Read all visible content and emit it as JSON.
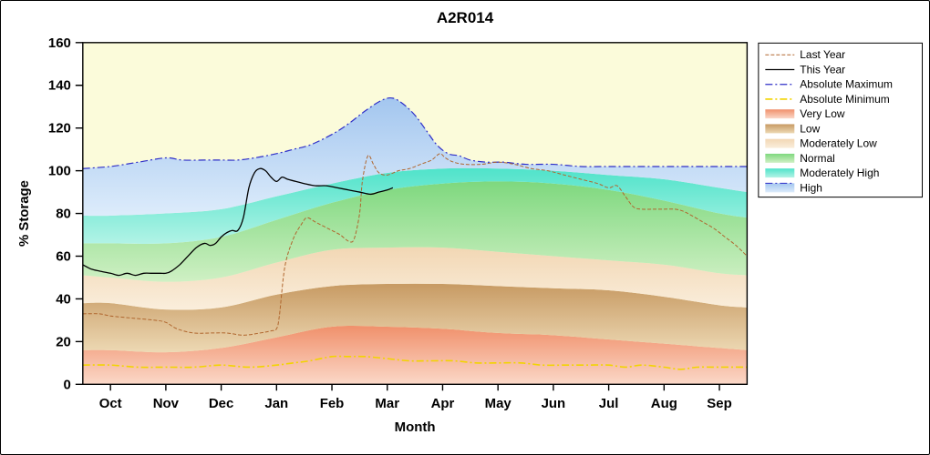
{
  "chart_data": {
    "type": "area",
    "title": "A2R014",
    "xlabel": "Month",
    "ylabel": "% Storage",
    "months": [
      "Oct",
      "Nov",
      "Dec",
      "Jan",
      "Feb",
      "Mar",
      "Apr",
      "May",
      "Jun",
      "Jul",
      "Aug",
      "Sep"
    ],
    "xlim": [
      -0.5,
      11.5
    ],
    "ylim": [
      0,
      160
    ],
    "yticks": [
      0,
      20,
      40,
      60,
      80,
      100,
      120,
      140,
      160
    ],
    "plot_bg": "#FBFBDA",
    "grid": "off",
    "bands": {
      "x": [
        -0.5,
        0,
        1,
        2,
        3,
        4,
        5,
        6,
        7,
        8,
        9,
        10,
        11,
        11.5
      ],
      "layers": [
        {
          "name": "Very Low",
          "color_top": "#F0906B",
          "color_bottom": "#FBD8C8",
          "top": [
            16,
            16,
            15,
            17,
            22,
            27,
            27,
            26,
            24,
            23,
            21,
            19,
            17,
            16
          ]
        },
        {
          "name": "Low",
          "color_top": "#C79A63",
          "color_bottom": "#EDD9B4",
          "top": [
            38,
            38,
            35,
            36,
            42,
            46,
            47,
            47,
            46,
            45,
            44,
            41,
            37,
            36
          ]
        },
        {
          "name": "Moderately Low",
          "color_top": "#F2D7B4",
          "color_bottom": "#FAEEDC",
          "top": [
            51,
            50,
            48,
            50,
            57,
            63,
            64,
            64,
            62,
            60,
            58,
            56,
            52,
            51
          ]
        },
        {
          "name": "Normal",
          "color_top": "#7ED87E",
          "color_bottom": "#CFF0C4",
          "top": [
            66,
            66,
            66,
            69,
            77,
            85,
            91,
            94,
            95,
            94,
            91,
            86,
            80,
            78
          ]
        },
        {
          "name": "Moderately High",
          "color_top": "#4FE3CA",
          "color_bottom": "#B2F3E6",
          "top": [
            79,
            79,
            80,
            82,
            88,
            94,
            99,
            101,
            101,
            100,
            98,
            96,
            92,
            90
          ]
        },
        {
          "name": "High",
          "color_top": "#A3C6EF",
          "color_bottom": "#DDECFB",
          "top_ref": "absolute_maximum"
        }
      ]
    },
    "series": {
      "last_year": {
        "label": "Last Year",
        "color": "#B0662E",
        "dash": "4 2",
        "width": 1,
        "points": [
          [
            -0.5,
            33
          ],
          [
            -0.2,
            33
          ],
          [
            0,
            32
          ],
          [
            0.4,
            31
          ],
          [
            0.8,
            30
          ],
          [
            1,
            29
          ],
          [
            1.2,
            26
          ],
          [
            1.5,
            24
          ],
          [
            1.8,
            24
          ],
          [
            2.1,
            24
          ],
          [
            2.4,
            23
          ],
          [
            2.7,
            24
          ],
          [
            2.9,
            25
          ],
          [
            3,
            26
          ],
          [
            3.05,
            32
          ],
          [
            3.15,
            55
          ],
          [
            3.3,
            68
          ],
          [
            3.45,
            75
          ],
          [
            3.55,
            78
          ],
          [
            3.7,
            76
          ],
          [
            3.85,
            74
          ],
          [
            4,
            72
          ],
          [
            4.15,
            70
          ],
          [
            4.3,
            67
          ],
          [
            4.4,
            68
          ],
          [
            4.5,
            80
          ],
          [
            4.55,
            95
          ],
          [
            4.65,
            107
          ],
          [
            4.75,
            103
          ],
          [
            4.85,
            99
          ],
          [
            5,
            98
          ],
          [
            5.2,
            100
          ],
          [
            5.4,
            101
          ],
          [
            5.6,
            103
          ],
          [
            5.8,
            105
          ],
          [
            5.95,
            108
          ],
          [
            6.05,
            106
          ],
          [
            6.2,
            104
          ],
          [
            6.4,
            103
          ],
          [
            6.7,
            103
          ],
          [
            7,
            104
          ],
          [
            7.3,
            103
          ],
          [
            7.6,
            101
          ],
          [
            7.9,
            100
          ],
          [
            8.2,
            98
          ],
          [
            8.5,
            96
          ],
          [
            8.8,
            94
          ],
          [
            9,
            92
          ],
          [
            9.15,
            93
          ],
          [
            9.3,
            88
          ],
          [
            9.45,
            83
          ],
          [
            9.6,
            82
          ],
          [
            9.8,
            82
          ],
          [
            10,
            82
          ],
          [
            10.2,
            82
          ],
          [
            10.35,
            81
          ],
          [
            10.5,
            79
          ],
          [
            10.7,
            76
          ],
          [
            10.9,
            73
          ],
          [
            11.1,
            69
          ],
          [
            11.3,
            65
          ],
          [
            11.5,
            60
          ]
        ]
      },
      "this_year": {
        "label": "This Year",
        "color": "#000000",
        "dash": null,
        "width": 1.3,
        "points": [
          [
            -0.5,
            56
          ],
          [
            -0.35,
            54
          ],
          [
            -0.2,
            53
          ],
          [
            0,
            52
          ],
          [
            0.15,
            51
          ],
          [
            0.3,
            52
          ],
          [
            0.45,
            51
          ],
          [
            0.6,
            52
          ],
          [
            0.75,
            52
          ],
          [
            0.9,
            52
          ],
          [
            1,
            52
          ],
          [
            1.1,
            53
          ],
          [
            1.25,
            56
          ],
          [
            1.4,
            60
          ],
          [
            1.55,
            64
          ],
          [
            1.7,
            66
          ],
          [
            1.8,
            65
          ],
          [
            1.9,
            66
          ],
          [
            2,
            69
          ],
          [
            2.1,
            71
          ],
          [
            2.2,
            72
          ],
          [
            2.3,
            72
          ],
          [
            2.4,
            78
          ],
          [
            2.5,
            92
          ],
          [
            2.6,
            99
          ],
          [
            2.7,
            101
          ],
          [
            2.8,
            100
          ],
          [
            2.9,
            97
          ],
          [
            3,
            95
          ],
          [
            3.1,
            97
          ],
          [
            3.2,
            96
          ],
          [
            3.35,
            95
          ],
          [
            3.5,
            94
          ],
          [
            3.7,
            93
          ],
          [
            3.9,
            93
          ],
          [
            4.1,
            92
          ],
          [
            4.3,
            91
          ],
          [
            4.5,
            90
          ],
          [
            4.7,
            89
          ],
          [
            4.85,
            90
          ],
          [
            5,
            91
          ],
          [
            5.1,
            92
          ]
        ]
      },
      "absolute_maximum": {
        "label": "Absolute Maximum",
        "color": "#2E2EC8",
        "dash": "8 3 2 3",
        "width": 1.2,
        "points": [
          [
            -0.5,
            101
          ],
          [
            0,
            102
          ],
          [
            0.5,
            104
          ],
          [
            1,
            106
          ],
          [
            1.3,
            105
          ],
          [
            1.7,
            105
          ],
          [
            2,
            105
          ],
          [
            2.3,
            105
          ],
          [
            2.6,
            106
          ],
          [
            3,
            108
          ],
          [
            3.3,
            110
          ],
          [
            3.6,
            112
          ],
          [
            4,
            117
          ],
          [
            4.3,
            122
          ],
          [
            4.6,
            128
          ],
          [
            4.9,
            133
          ],
          [
            5.1,
            134
          ],
          [
            5.3,
            131
          ],
          [
            5.5,
            126
          ],
          [
            5.7,
            119
          ],
          [
            5.9,
            112
          ],
          [
            6.1,
            108
          ],
          [
            6.3,
            107
          ],
          [
            6.5,
            105
          ],
          [
            6.8,
            104
          ],
          [
            7.1,
            104
          ],
          [
            7.5,
            103
          ],
          [
            8,
            103
          ],
          [
            8.5,
            102
          ],
          [
            9,
            102
          ],
          [
            9.5,
            102
          ],
          [
            10,
            102
          ],
          [
            10.5,
            102
          ],
          [
            11,
            102
          ],
          [
            11.5,
            102
          ]
        ]
      },
      "absolute_minimum": {
        "label": "Absolute Minimum",
        "color": "#F2D400",
        "dash": "8 3 2 3",
        "width": 1.6,
        "points": [
          [
            -0.5,
            9
          ],
          [
            0,
            9
          ],
          [
            0.5,
            8
          ],
          [
            1,
            8
          ],
          [
            1.5,
            8
          ],
          [
            2,
            9
          ],
          [
            2.5,
            8
          ],
          [
            3,
            9
          ],
          [
            3.3,
            10
          ],
          [
            3.6,
            11
          ],
          [
            4,
            13
          ],
          [
            4.3,
            13
          ],
          [
            4.6,
            13
          ],
          [
            5,
            12
          ],
          [
            5.4,
            11
          ],
          [
            5.8,
            11
          ],
          [
            6.2,
            11
          ],
          [
            6.6,
            10
          ],
          [
            7,
            10
          ],
          [
            7.4,
            10
          ],
          [
            7.8,
            9
          ],
          [
            8.2,
            9
          ],
          [
            8.6,
            9
          ],
          [
            9,
            9
          ],
          [
            9.3,
            8
          ],
          [
            9.6,
            9
          ],
          [
            10,
            8
          ],
          [
            10.3,
            7
          ],
          [
            10.6,
            8
          ],
          [
            11,
            8
          ],
          [
            11.5,
            8
          ]
        ]
      }
    },
    "legend": {
      "position": "top-right",
      "entries": [
        {
          "label": "Last Year",
          "type": "line",
          "ref": "last_year"
        },
        {
          "label": "This Year",
          "type": "line",
          "ref": "this_year"
        },
        {
          "label": "Absolute Maximum",
          "type": "line",
          "ref": "absolute_maximum"
        },
        {
          "label": "Absolute Minimum",
          "type": "line",
          "ref": "absolute_minimum"
        },
        {
          "label": "Very Low",
          "type": "band",
          "ref": "Very Low"
        },
        {
          "label": "Low",
          "type": "band",
          "ref": "Low"
        },
        {
          "label": "Moderately Low",
          "type": "band",
          "ref": "Moderately Low"
        },
        {
          "label": "Normal",
          "type": "band",
          "ref": "Normal"
        },
        {
          "label": "Moderately High",
          "type": "band",
          "ref": "Moderately High"
        },
        {
          "label": "High",
          "type": "band",
          "ref": "High",
          "overlay_line": "absolute_maximum"
        }
      ]
    }
  }
}
